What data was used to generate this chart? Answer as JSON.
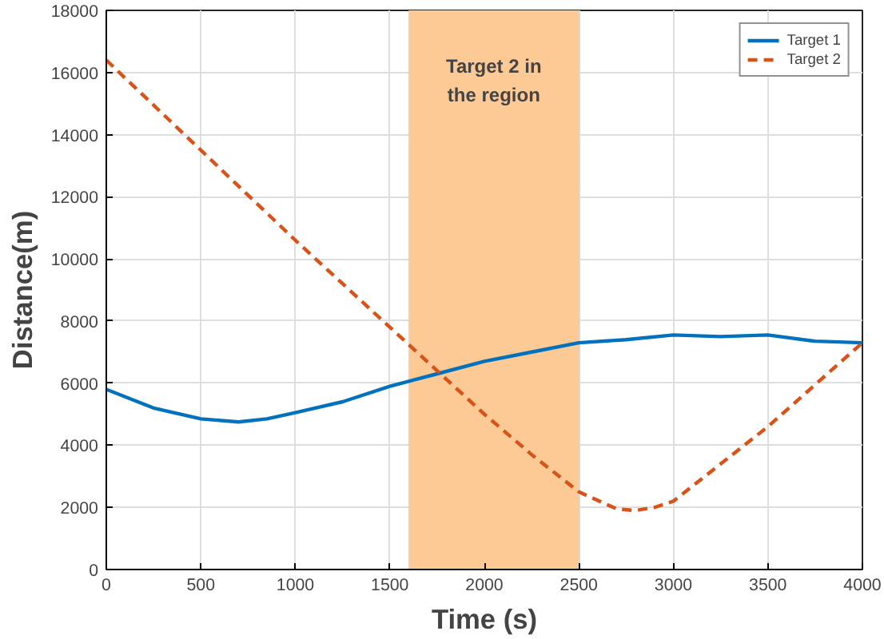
{
  "chart_data": {
    "type": "line",
    "xlabel": "Time (s)",
    "ylabel": "Distance(m)",
    "xlim": [
      0,
      4000
    ],
    "ylim": [
      0,
      18000
    ],
    "xticks": [
      0,
      500,
      1000,
      1500,
      2000,
      2500,
      3000,
      3500,
      4000
    ],
    "yticks": [
      0,
      2000,
      4000,
      6000,
      8000,
      10000,
      12000,
      14000,
      16000,
      18000
    ],
    "grid": true,
    "legend": "top right",
    "bands": [
      {
        "axis": "x",
        "from": 1600,
        "to": 2500,
        "label": "Target 2 in\nthe region",
        "color": "#fdca96"
      }
    ],
    "series": [
      {
        "name": "Target 1",
        "color": "#0072bd",
        "line_style": "solid",
        "x": [
          0,
          250,
          500,
          700,
          850,
          1000,
          1250,
          1500,
          1750,
          2000,
          2250,
          2500,
          2750,
          3000,
          3250,
          3500,
          3750,
          4000
        ],
        "values": [
          5800,
          5200,
          4850,
          4750,
          4850,
          5050,
          5400,
          5900,
          6300,
          6700,
          7000,
          7300,
          7400,
          7550,
          7500,
          7550,
          7350,
          7300
        ]
      },
      {
        "name": "Target 2",
        "color": "#d95319",
        "line_style": "dashed",
        "x": [
          0,
          500,
          1000,
          1500,
          2000,
          2250,
          2500,
          2700,
          2800,
          2900,
          3000,
          3500,
          4000
        ],
        "values": [
          16400,
          13500,
          10600,
          7800,
          5000,
          3700,
          2500,
          1950,
          1900,
          2000,
          2200,
          4600,
          7300
        ]
      }
    ]
  }
}
